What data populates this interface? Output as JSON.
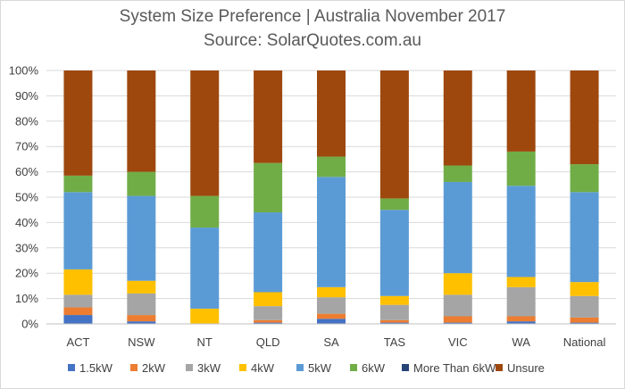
{
  "chart_data": {
    "type": "bar",
    "stacked": true,
    "title": "System Size Preference  | Australia November 2017",
    "subtitle": "Source: SolarQuotes.com.au",
    "ylim": [
      0,
      100
    ],
    "yticks": [
      "0%",
      "10%",
      "20%",
      "30%",
      "40%",
      "50%",
      "60%",
      "70%",
      "80%",
      "90%",
      "100%"
    ],
    "grid": true,
    "legend_position": "bottom",
    "categories": [
      "ACT",
      "NSW",
      "NT",
      "QLD",
      "SA",
      "TAS",
      "VIC",
      "WA",
      "National"
    ],
    "series": [
      {
        "name": "1.5kW",
        "color": "#4472c4",
        "values": [
          3.5,
          1.0,
          0.0,
          0.5,
          2.0,
          0.5,
          0.5,
          1.0,
          0.5
        ]
      },
      {
        "name": "2kW",
        "color": "#ed7d31",
        "values": [
          3.0,
          2.5,
          0.0,
          1.0,
          2.0,
          1.0,
          2.5,
          2.0,
          2.0
        ]
      },
      {
        "name": "3kW",
        "color": "#a5a5a5",
        "values": [
          5.0,
          8.5,
          0.0,
          5.5,
          6.5,
          6.0,
          8.5,
          11.5,
          8.5
        ]
      },
      {
        "name": "4kW",
        "color": "#ffc000",
        "values": [
          10.0,
          5.0,
          6.0,
          5.5,
          4.0,
          3.5,
          8.5,
          4.0,
          5.5
        ]
      },
      {
        "name": "5kW",
        "color": "#5b9bd5",
        "values": [
          30.5,
          33.5,
          32.0,
          31.5,
          43.5,
          34.0,
          36.0,
          36.0,
          35.5
        ]
      },
      {
        "name": "6kW",
        "color": "#70ad47",
        "values": [
          6.5,
          9.5,
          12.5,
          19.5,
          8.0,
          4.5,
          6.5,
          13.5,
          11.0
        ]
      },
      {
        "name": "More Than 6kW",
        "color": "#264478",
        "values": [
          0.0,
          0.0,
          0.0,
          0.0,
          0.0,
          0.0,
          0.0,
          0.0,
          0.0
        ]
      },
      {
        "name": "Unsure",
        "color": "#9e480e",
        "values": [
          41.5,
          40.0,
          49.5,
          36.5,
          34.0,
          50.5,
          37.5,
          32.0,
          37.0
        ]
      }
    ]
  }
}
